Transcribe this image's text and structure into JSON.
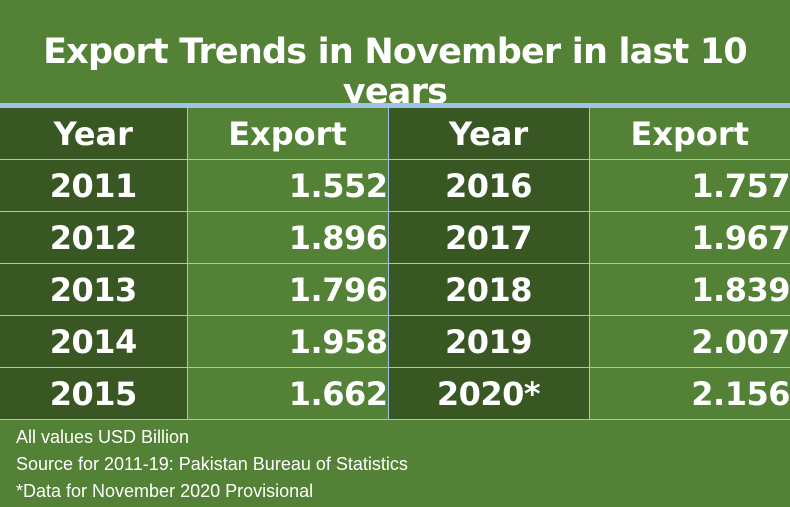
{
  "title": "Export Trends in November in last 10 years",
  "colors": {
    "background": "#538135",
    "year_cell": "#385723",
    "grid_line": "#9dc3e6",
    "text": "#ffffff"
  },
  "table": {
    "headers": [
      "Year",
      "Export",
      "Year",
      "Export"
    ],
    "rows": [
      [
        "2011",
        "1.552",
        "2016",
        "1.757"
      ],
      [
        "2012",
        "1.896",
        "2017",
        "1.967"
      ],
      [
        "2013",
        "1.796",
        "2018",
        "1.839"
      ],
      [
        "2014",
        "1.958",
        "2019",
        "2.007"
      ],
      [
        "2015",
        "1.662",
        "2020*",
        "2.156"
      ]
    ]
  },
  "notes": [
    "All values USD Billion",
    "Source for 2011-19: Pakistan Bureau of Statistics",
    "*Data for November 2020 Provisional"
  ],
  "chart_data": {
    "type": "table",
    "title": "Export Trends in November in last 10 years",
    "columns": [
      "Year",
      "Export"
    ],
    "x": [
      "2011",
      "2012",
      "2013",
      "2014",
      "2015",
      "2016",
      "2017",
      "2018",
      "2019",
      "2020*"
    ],
    "values": [
      1.552,
      1.896,
      1.796,
      1.958,
      1.662,
      1.757,
      1.967,
      1.839,
      2.007,
      2.156
    ],
    "unit": "USD Billion"
  }
}
